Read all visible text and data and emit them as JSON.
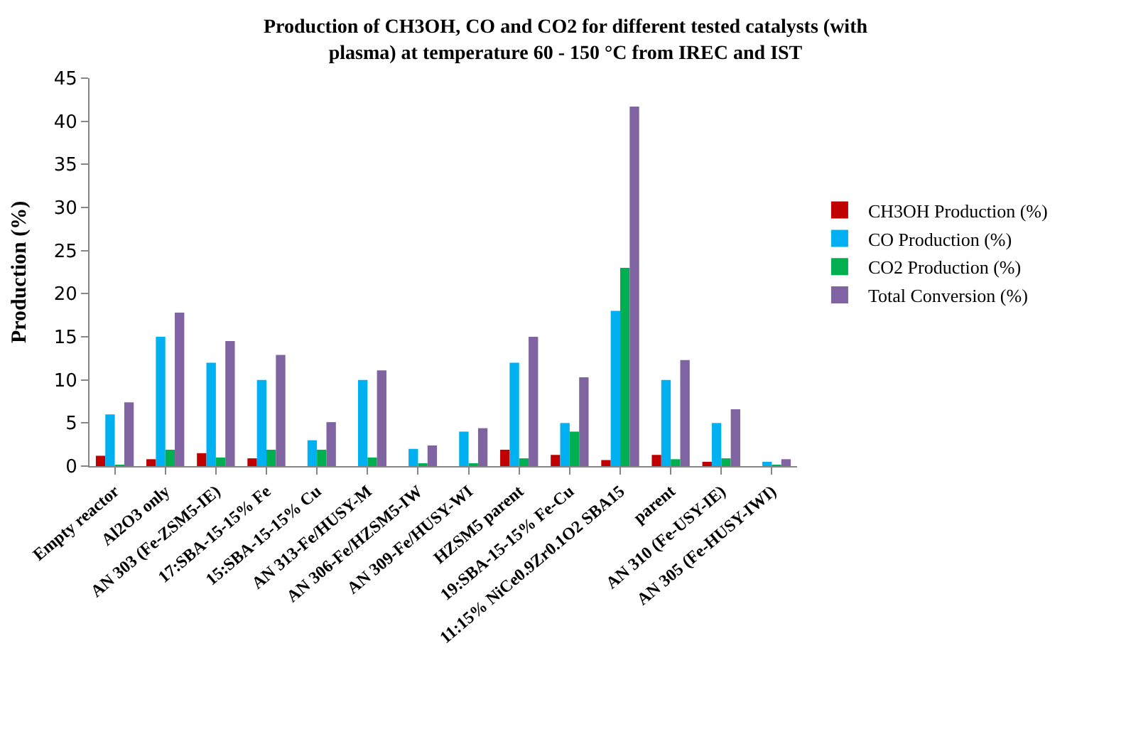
{
  "chart_data": {
    "type": "bar",
    "title": "Production of CH3OH, CO and CO2 for different tested catalysts (with\nplasma) at temperature 60 - 150 °C from IREC and IST",
    "ylabel": "Production (%)",
    "categories": [
      "Empty reactor",
      "Al2O3 only",
      "AN 303 (Fe-ZSM5-IE)",
      "17:SBA-15-15% Fe",
      "15:SBA-15-15% Cu",
      "AN 313-Fe/HUSY-M",
      "AN 306-Fe/HZSM5-IW",
      "AN 309-Fe/HUSY-WI",
      "HZSM5 parent",
      "19:SBA-15-15% Fe-Cu",
      "11:15% NiCe0.9Zr0.1O2 SBA15",
      "parent",
      "AN 310 (Fe-USY-IE)",
      "AN 305 (Fe-HUSY-IWI)"
    ],
    "series": [
      {
        "name": "CH3OH Production (%)",
        "color": "#c00000",
        "values": [
          1.2,
          0.8,
          1.5,
          0.9,
          0,
          0,
          0,
          0,
          1.9,
          1.3,
          0.7,
          1.3,
          0.5,
          0
        ]
      },
      {
        "name": "CO Production (%)",
        "color": "#00b0f0",
        "values": [
          6,
          15,
          12,
          10,
          3,
          10,
          2,
          4,
          12,
          5,
          18,
          10,
          5,
          0.5
        ]
      },
      {
        "name": "CO2 Production (%)",
        "color": "#00b050",
        "values": [
          0.1,
          1.9,
          1,
          1.9,
          1.9,
          1,
          0.2,
          0.2,
          0.9,
          4,
          23,
          0.8,
          0.9,
          0.1
        ]
      },
      {
        "name": "Total Conversion (%)",
        "color": "#8064a2",
        "values": [
          7.4,
          17.8,
          14.5,
          12.9,
          5.1,
          11.1,
          2.4,
          4.4,
          15,
          10.3,
          41.7,
          12.3,
          6.6,
          0.8
        ]
      }
    ],
    "ylim": [
      0,
      45
    ],
    "yticks": [
      0,
      5,
      10,
      15,
      20,
      25,
      30,
      35,
      40,
      45
    ],
    "grid": false,
    "legend": "right"
  }
}
